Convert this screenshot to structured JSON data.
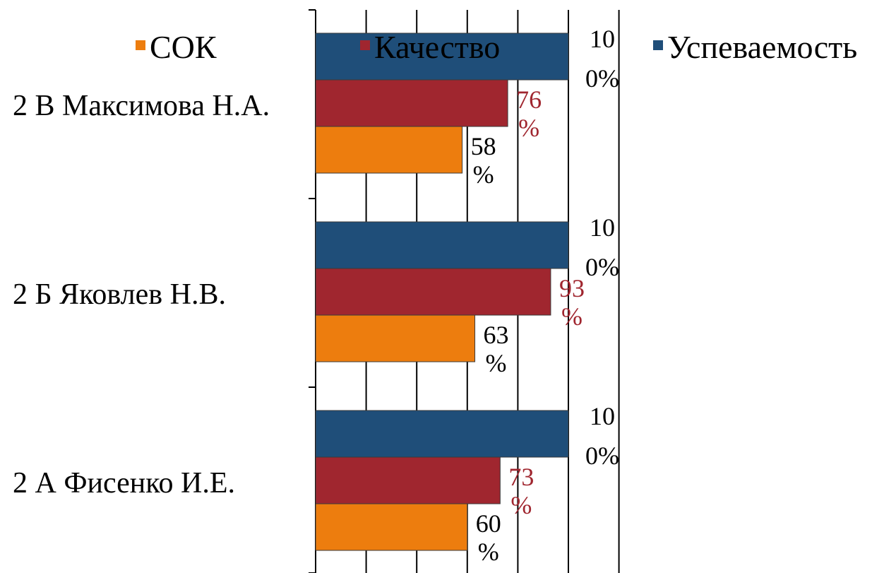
{
  "chart_data": {
    "type": "bar",
    "orientation": "horizontal",
    "categories": [
      "2 В Максимова Н.А.",
      "2 Б Яковлев Н.В.",
      "2 А Фисенко И.Е."
    ],
    "series": [
      {
        "name": "СОК",
        "color": "#ED7D0E",
        "label_color": "#000000",
        "values": [
          58,
          63,
          60
        ],
        "labels": [
          [
            "58",
            "%"
          ],
          [
            "63",
            "%"
          ],
          [
            "60",
            "%"
          ]
        ]
      },
      {
        "name": "Качество",
        "color": "#A0262F",
        "label_color": "#A0262F",
        "values": [
          76,
          93,
          73
        ],
        "labels": [
          [
            "76",
            "%"
          ],
          [
            "93",
            "%"
          ],
          [
            "73",
            "%"
          ]
        ]
      },
      {
        "name": "Успеваемость",
        "color": "#1F4E79",
        "label_color": "#000000",
        "values": [
          100,
          100,
          100
        ],
        "labels": [
          [
            "10",
            "0%"
          ],
          [
            "10",
            "0%"
          ],
          [
            "10",
            "0%"
          ]
        ]
      }
    ],
    "xlim": [
      0,
      120
    ],
    "grid": true,
    "legend_position": "top"
  }
}
